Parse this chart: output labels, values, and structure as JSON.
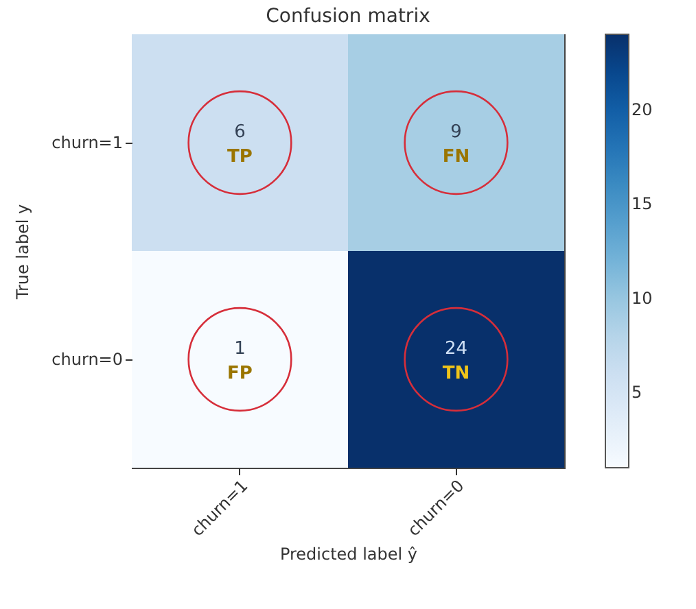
{
  "chart_data": {
    "type": "heatmap",
    "title": "Confusion matrix",
    "xlabel": "Predicted label  ŷ",
    "ylabel": "True label  y",
    "categories": [
      "churn=1",
      "churn=0"
    ],
    "y_categories": [
      "churn=1",
      "churn=0"
    ],
    "cells": [
      [
        6,
        9
      ],
      [
        1,
        24
      ]
    ],
    "clim": [
      1,
      24
    ],
    "cticks": [
      5,
      10,
      15,
      20
    ],
    "data_labels": true,
    "annotations": [
      "TP",
      "FN",
      "FP",
      "TN"
    ]
  }
}
